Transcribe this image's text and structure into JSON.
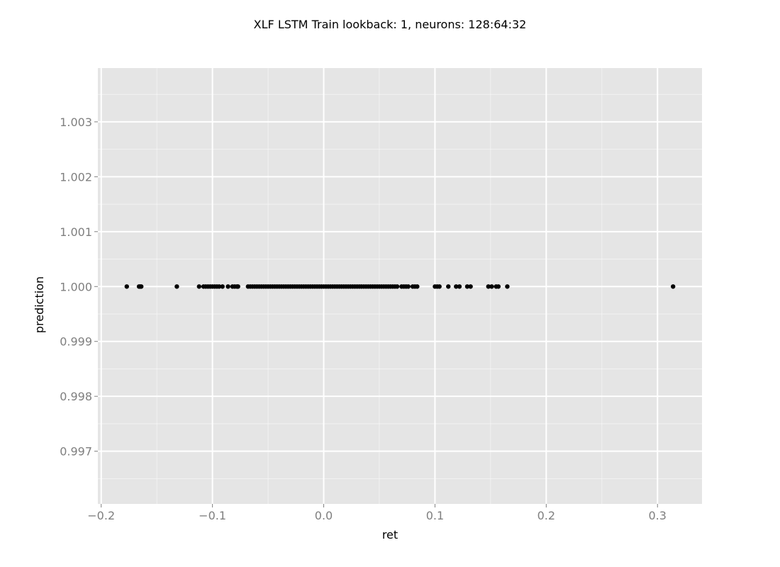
{
  "chart_data": {
    "type": "scatter",
    "title": "XLF LSTM Train lookback: 1, neurons: 128:64:32",
    "xlabel": "ret",
    "ylabel": "prediction",
    "xlim": [
      -0.203,
      0.34
    ],
    "ylim": [
      0.99604,
      1.00398
    ],
    "x_ticks": [
      -0.2,
      -0.1,
      0.0,
      0.1,
      0.2,
      0.3
    ],
    "x_tick_labels": [
      "−0.2",
      "−0.1",
      "0.0",
      "0.1",
      "0.2",
      "0.3"
    ],
    "y_ticks": [
      0.997,
      0.998,
      0.999,
      1.0,
      1.001,
      1.002,
      1.003
    ],
    "y_tick_labels": [
      "0.997",
      "0.998",
      "0.999",
      "1.000",
      "1.001",
      "1.002",
      "1.003"
    ],
    "grid": true,
    "colors": {
      "panel": "#e5e5e5",
      "grid": "#ffffff",
      "point": "#000000"
    },
    "points": {
      "y": 1.0,
      "x": [
        -0.177,
        -0.166,
        -0.165,
        -0.164,
        -0.132,
        -0.112,
        -0.108,
        -0.106,
        -0.104,
        -0.102,
        -0.1,
        -0.098,
        -0.096,
        -0.094,
        -0.091,
        -0.086,
        -0.082,
        -0.08,
        -0.078,
        -0.077,
        -0.068,
        -0.066,
        -0.064,
        -0.062,
        -0.06,
        -0.058,
        -0.056,
        -0.054,
        -0.052,
        -0.05,
        -0.048,
        -0.046,
        -0.044,
        -0.042,
        -0.04,
        -0.038,
        -0.036,
        -0.034,
        -0.032,
        -0.03,
        -0.028,
        -0.026,
        -0.024,
        -0.022,
        -0.02,
        -0.018,
        -0.016,
        -0.014,
        -0.012,
        -0.01,
        -0.008,
        -0.006,
        -0.004,
        -0.002,
        0.0,
        0.002,
        0.004,
        0.006,
        0.008,
        0.01,
        0.012,
        0.014,
        0.016,
        0.018,
        0.02,
        0.022,
        0.024,
        0.026,
        0.028,
        0.03,
        0.032,
        0.034,
        0.036,
        0.038,
        0.04,
        0.042,
        0.044,
        0.046,
        0.048,
        0.05,
        0.052,
        0.054,
        0.056,
        0.058,
        0.06,
        0.062,
        0.064,
        0.066,
        0.07,
        0.072,
        0.074,
        0.076,
        0.08,
        0.082,
        0.084,
        0.1,
        0.102,
        0.104,
        0.112,
        0.119,
        0.122,
        0.129,
        0.132,
        0.148,
        0.151,
        0.155,
        0.157,
        0.165,
        0.314
      ]
    }
  }
}
